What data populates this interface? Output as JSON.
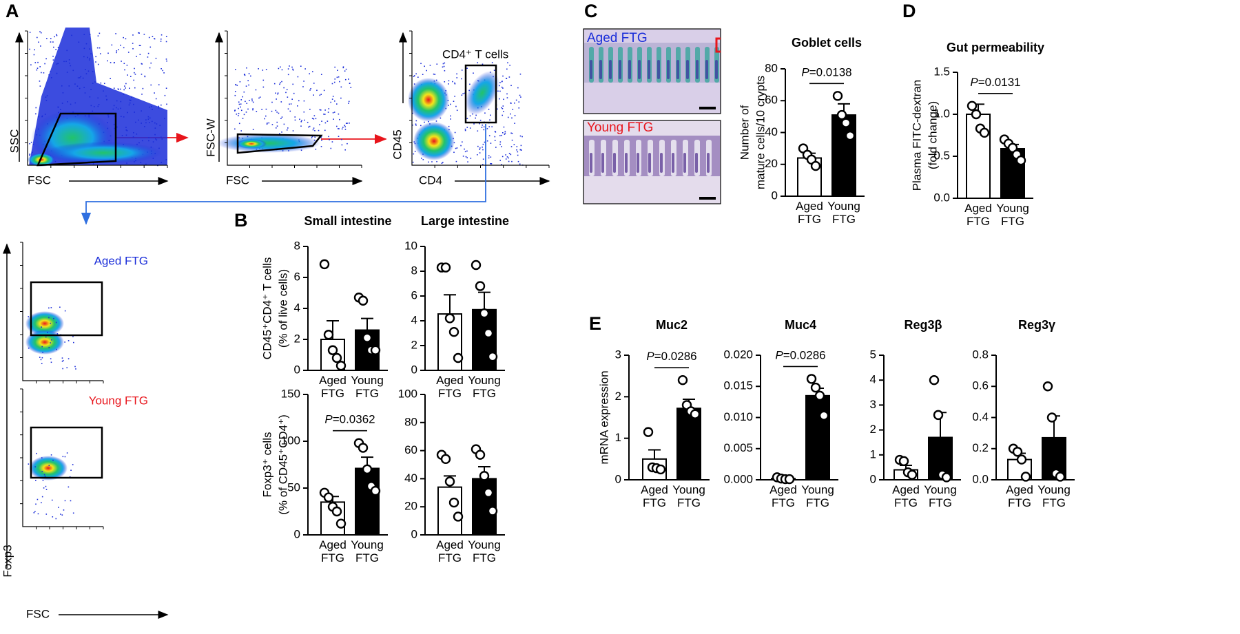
{
  "panel_labels": [
    "A",
    "B",
    "C",
    "D",
    "E"
  ],
  "flow": {
    "plot1": {
      "y": "SSC",
      "x": "FSC"
    },
    "plot2": {
      "y": "FSC-W",
      "x": "FSC"
    },
    "plot3": {
      "y": "CD45",
      "x": "CD4",
      "gate": "CD4⁺ T cells"
    },
    "foxp3": {
      "y": "Foxp3",
      "x": "FSC",
      "top": "Aged FTG",
      "bottom": "Young FTG"
    }
  },
  "histology": {
    "top": "Aged FTG",
    "bottom": "Young FTG"
  },
  "chart_data": [
    {
      "type": "bar",
      "title": "Small intestine",
      "ylabel": [
        "CD45⁺CD4⁺ T cells",
        "(% of live cells)"
      ],
      "categories": [
        "Aged FTG",
        "Young FTG"
      ],
      "colors": [
        "#ffffff",
        "#000000"
      ],
      "values": [
        2.0,
        2.6
      ],
      "errors": [
        1.2,
        0.75
      ],
      "points": [
        [
          6.85,
          2.3,
          1.3,
          0.8,
          0.3
        ],
        [
          4.7,
          4.5,
          2.1,
          1.3,
          1.3
        ]
      ],
      "ylim": [
        0,
        8
      ],
      "yticks": [
        0,
        2,
        4,
        6,
        8
      ]
    },
    {
      "type": "bar",
      "title": "Large intestine",
      "categories": [
        "Aged FTG",
        "Young FTG"
      ],
      "colors": [
        "#ffffff",
        "#000000"
      ],
      "values": [
        4.55,
        4.9
      ],
      "errors": [
        1.55,
        1.4
      ],
      "points": [
        [
          8.3,
          8.3,
          4.2,
          3.1,
          1.0
        ],
        [
          8.5,
          6.8,
          4.6,
          3.0,
          1.1
        ]
      ],
      "ylim": [
        0,
        10
      ],
      "yticks": [
        0,
        2,
        4,
        6,
        8,
        10
      ]
    },
    {
      "type": "bar",
      "ylabel": [
        "Foxp3⁺ cells",
        "(% of CD45⁺CD4⁺)"
      ],
      "categories": [
        "Aged FTG",
        "Young FTG"
      ],
      "colors": [
        "#ffffff",
        "#000000"
      ],
      "values": [
        35,
        71
      ],
      "errors": [
        6,
        12
      ],
      "points": [
        [
          45,
          40,
          30,
          25,
          12
        ],
        [
          98,
          93,
          70,
          52,
          47
        ]
      ],
      "annotation": "P=0.0362",
      "ylim": [
        0,
        150
      ],
      "yticks": [
        0,
        50,
        100,
        150
      ]
    },
    {
      "type": "bar",
      "categories": [
        "Aged FTG",
        "Young FTG"
      ],
      "colors": [
        "#ffffff",
        "#000000"
      ],
      "values": [
        34,
        40
      ],
      "errors": [
        8,
        8.5
      ],
      "points": [
        [
          57,
          54,
          38,
          23,
          13
        ],
        [
          61,
          57,
          42,
          30,
          17
        ]
      ],
      "ylim": [
        0,
        100
      ],
      "yticks": [
        0,
        20,
        40,
        60,
        80,
        100
      ]
    },
    {
      "type": "bar",
      "title": "Goblet cells",
      "ylabel": [
        "Number of",
        "mature cells/10 crypts"
      ],
      "categories": [
        "Aged FTG",
        "Young FTG"
      ],
      "colors": [
        "#ffffff",
        "#000000"
      ],
      "values": [
        24,
        51
      ],
      "errors": [
        3,
        7
      ],
      "points": [
        [
          30,
          26,
          23,
          19
        ],
        [
          63,
          51,
          46,
          38
        ]
      ],
      "annotation": "P=0.0138",
      "ylim": [
        0,
        80
      ],
      "yticks": [
        0,
        20,
        40,
        60,
        80
      ]
    },
    {
      "type": "bar",
      "title": "Gut permeability",
      "ylabel": [
        "Plasma FITC-dextran",
        "(fold change)"
      ],
      "categories": [
        "Aged FTG",
        "Young FTG"
      ],
      "colors": [
        "#ffffff",
        "#000000"
      ],
      "values": [
        1.0,
        0.59
      ],
      "errors": [
        0.12,
        0.05
      ],
      "points": [
        [
          1.1,
          1.0,
          0.83,
          0.78
        ],
        [
          0.7,
          0.65,
          0.6,
          0.52,
          0.45
        ]
      ],
      "annotation": "P=0.0131",
      "ylim": [
        0,
        1.5
      ],
      "yticks": [
        {
          "value": 0,
          "label": "0.0"
        },
        0.5,
        {
          "value": 1,
          "label": "1.0"
        },
        1.5
      ]
    },
    {
      "type": "bar",
      "title": "Muc2",
      "ylabel": [
        "mRNA expression"
      ],
      "categories": [
        "Aged FTG",
        "Young FTG"
      ],
      "colors": [
        "#ffffff",
        "#000000"
      ],
      "values": [
        0.5,
        1.72
      ],
      "errors": [
        0.22,
        0.22
      ],
      "points": [
        [
          1.15,
          0.3,
          0.28,
          0.25
        ],
        [
          2.4,
          1.8,
          1.65,
          1.58
        ]
      ],
      "annotation": "P=0.0286",
      "ylim": [
        0,
        3
      ],
      "yticks": [
        0,
        1,
        2,
        3
      ]
    },
    {
      "type": "bar",
      "title": "Muc4",
      "categories": [
        "Aged FTG",
        "Young FTG"
      ],
      "colors": [
        "#ffffff",
        "#000000"
      ],
      "values": [
        0.0002,
        0.0135
      ],
      "errors": [
        0.0001,
        0.0012
      ],
      "points": [
        [
          0.0004,
          0.0002,
          0.0001,
          0.0001
        ],
        [
          0.0162,
          0.0148,
          0.0135,
          0.0103
        ]
      ],
      "annotation": "P=0.0286",
      "ylim": [
        0,
        0.02
      ],
      "yticks": [
        {
          "value": 0,
          "label": "0.000"
        },
        {
          "value": 0.005,
          "label": "0.005"
        },
        {
          "value": 0.01,
          "label": "0.010"
        },
        {
          "value": 0.015,
          "label": "0.015"
        },
        {
          "value": 0.02,
          "label": "0.020"
        }
      ]
    },
    {
      "type": "bar",
      "title": "Reg3β",
      "categories": [
        "Aged FTG",
        "Young FTG"
      ],
      "colors": [
        "#ffffff",
        "#000000"
      ],
      "values": [
        0.4,
        1.7
      ],
      "errors": [
        0.18,
        1.0
      ],
      "points": [
        [
          0.8,
          0.75,
          0.3,
          0.2
        ],
        [
          4.0,
          2.6,
          0.2,
          0.1
        ]
      ],
      "ylim": [
        0,
        5
      ],
      "yticks": [
        0,
        1,
        2,
        3,
        4,
        5
      ]
    },
    {
      "type": "bar",
      "title": "Reg3γ",
      "categories": [
        "Aged FTG",
        "Young FTG"
      ],
      "colors": [
        "#ffffff",
        "#000000"
      ],
      "values": [
        0.13,
        0.27
      ],
      "errors": [
        0.04,
        0.14
      ],
      "points": [
        [
          0.2,
          0.18,
          0.13,
          0.02
        ],
        [
          0.6,
          0.4,
          0.04,
          0.02
        ]
      ],
      "ylim": [
        0,
        0.8
      ],
      "yticks": [
        {
          "value": 0,
          "label": "0.0"
        },
        0.2,
        0.4,
        0.6,
        0.8
      ]
    }
  ]
}
